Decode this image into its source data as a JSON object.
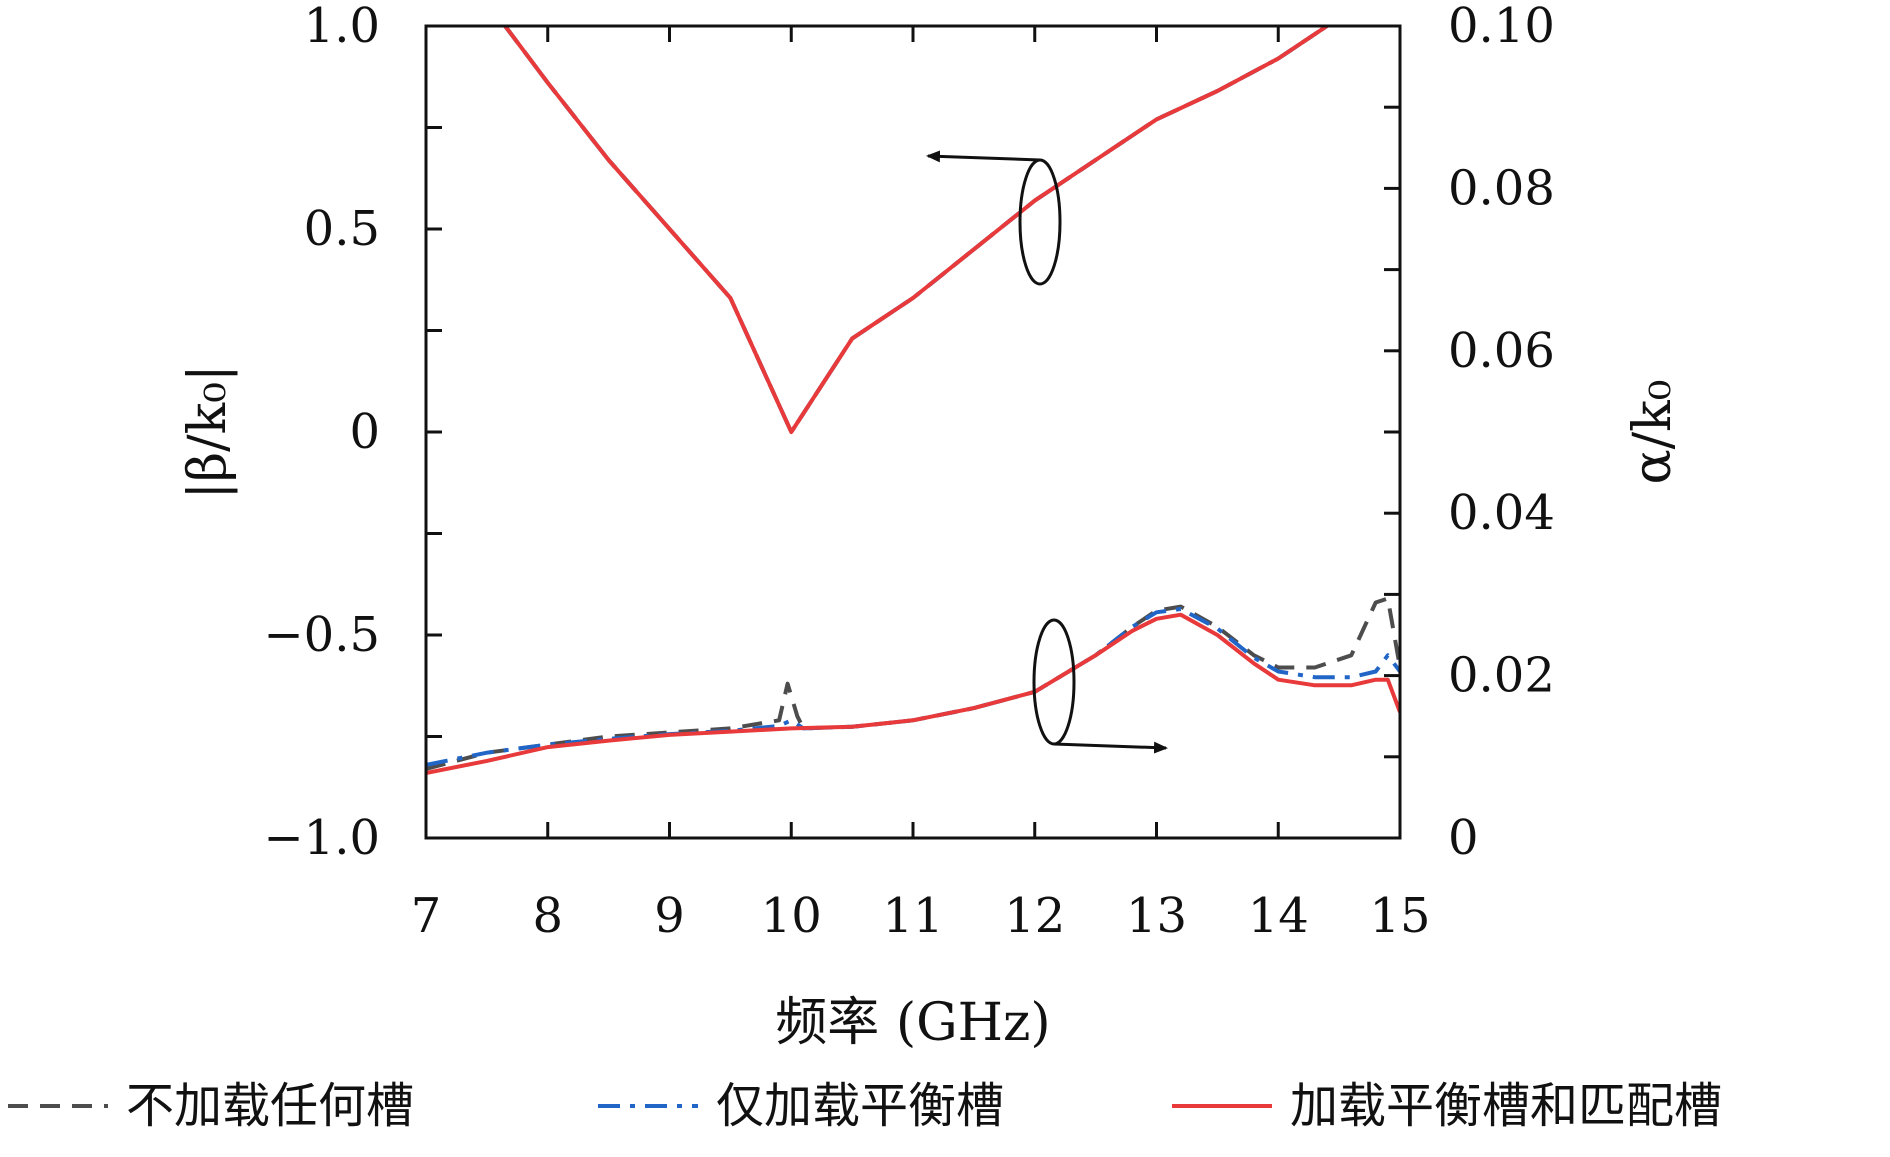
{
  "chart_data": {
    "type": "line",
    "xlabel": "频率 (GHz)",
    "ylabel_left": "|β/k₀|",
    "ylabel_right": "α/k₀",
    "xlim": [
      7,
      15
    ],
    "ylim_left": [
      -1.0,
      1.0
    ],
    "ylim_right": [
      0,
      0.1
    ],
    "x_ticks": [
      "7",
      "8",
      "9",
      "10",
      "11",
      "12",
      "13",
      "14",
      "15"
    ],
    "y_left_ticks": [
      "1.0",
      "0.5",
      "0",
      "−0.5",
      "−1.0"
    ],
    "y_left_tick_values": [
      1.0,
      0.5,
      0,
      -0.5,
      -1.0
    ],
    "y_right_ticks": [
      "0.10",
      "0.08",
      "0.06",
      "0.04",
      "0.02",
      "0"
    ],
    "y_right_tick_values": [
      0.1,
      0.08,
      0.06,
      0.04,
      0.02,
      0
    ],
    "grid": false,
    "legend_position": "bottom",
    "colors": {
      "none": "#4d4d4d",
      "balance": "#2166c7",
      "both": "#e8393b"
    },
    "series": [
      {
        "name": "不加载任何槽",
        "color_key": "none",
        "dash": "dashed",
        "axis": "left",
        "x": [
          7.65,
          8.0,
          8.5,
          9.0,
          9.5,
          10.0,
          10.5,
          11.0,
          11.5,
          12.0,
          12.5,
          13.0,
          13.5,
          14.0,
          14.4
        ],
        "y": [
          1.0,
          0.86,
          0.67,
          0.5,
          0.33,
          0.0,
          0.23,
          0.33,
          0.45,
          0.57,
          0.67,
          0.77,
          0.84,
          0.92,
          1.0
        ]
      },
      {
        "name": "仅加载平衡槽",
        "color_key": "balance",
        "dash": "dashdot",
        "axis": "left",
        "x": [
          7.65,
          8.0,
          8.5,
          9.0,
          9.5,
          10.0,
          10.5,
          11.0,
          11.5,
          12.0,
          12.5,
          13.0,
          13.5,
          14.0,
          14.4
        ],
        "y": [
          1.0,
          0.86,
          0.67,
          0.5,
          0.33,
          0.0,
          0.23,
          0.33,
          0.45,
          0.57,
          0.67,
          0.77,
          0.84,
          0.92,
          1.0
        ]
      },
      {
        "name": "加载平衡槽和匹配槽",
        "color_key": "both",
        "dash": "solid",
        "axis": "left",
        "x": [
          7.65,
          8.0,
          8.5,
          9.0,
          9.5,
          10.0,
          10.5,
          11.0,
          11.5,
          12.0,
          12.5,
          13.0,
          13.5,
          14.0,
          14.4
        ],
        "y": [
          1.0,
          0.86,
          0.67,
          0.5,
          0.33,
          0.0,
          0.23,
          0.33,
          0.45,
          0.57,
          0.67,
          0.77,
          0.84,
          0.92,
          1.0
        ]
      },
      {
        "name": "不加载任何槽",
        "color_key": "none",
        "dash": "dashed",
        "axis": "right",
        "x": [
          7.0,
          7.5,
          8.0,
          8.5,
          9.0,
          9.5,
          9.9,
          9.97,
          10.05,
          10.1,
          10.5,
          11.0,
          11.5,
          12.0,
          12.5,
          12.8,
          13.0,
          13.2,
          13.5,
          13.8,
          14.0,
          14.3,
          14.6,
          14.8,
          14.9,
          15.0
        ],
        "y": [
          0.0085,
          0.0105,
          0.0115,
          0.0125,
          0.013,
          0.0135,
          0.0145,
          0.019,
          0.015,
          0.0135,
          0.0137,
          0.0145,
          0.016,
          0.018,
          0.0225,
          0.026,
          0.028,
          0.0285,
          0.026,
          0.0225,
          0.021,
          0.021,
          0.0225,
          0.029,
          0.0295,
          0.021
        ]
      },
      {
        "name": "仅加载平衡槽",
        "color_key": "balance",
        "dash": "dashdot",
        "axis": "right",
        "x": [
          7.0,
          7.5,
          8.0,
          8.5,
          9.0,
          9.5,
          9.9,
          10.0,
          10.1,
          10.5,
          11.0,
          11.5,
          12.0,
          12.5,
          12.8,
          13.0,
          13.2,
          13.5,
          13.8,
          14.0,
          14.3,
          14.6,
          14.8,
          14.9,
          15.0
        ],
        "y": [
          0.009,
          0.0105,
          0.0115,
          0.0122,
          0.0128,
          0.0132,
          0.0138,
          0.0145,
          0.0135,
          0.0137,
          0.0145,
          0.016,
          0.018,
          0.0225,
          0.026,
          0.0278,
          0.0282,
          0.0258,
          0.0222,
          0.0205,
          0.0198,
          0.0198,
          0.0205,
          0.0225,
          0.0205
        ]
      },
      {
        "name": "加载平衡槽和匹配槽",
        "color_key": "both",
        "dash": "solid",
        "axis": "right",
        "x": [
          7.0,
          7.5,
          8.0,
          8.5,
          9.0,
          9.5,
          10.0,
          10.5,
          11.0,
          11.5,
          12.0,
          12.5,
          12.8,
          13.0,
          13.2,
          13.5,
          13.8,
          14.0,
          14.3,
          14.6,
          14.8,
          14.9,
          15.0
        ],
        "y": [
          0.008,
          0.0095,
          0.0112,
          0.012,
          0.0127,
          0.0131,
          0.0135,
          0.0137,
          0.0145,
          0.016,
          0.018,
          0.0225,
          0.0255,
          0.027,
          0.0275,
          0.025,
          0.0215,
          0.0195,
          0.0188,
          0.0188,
          0.0195,
          0.0195,
          0.0155
        ]
      }
    ]
  }
}
